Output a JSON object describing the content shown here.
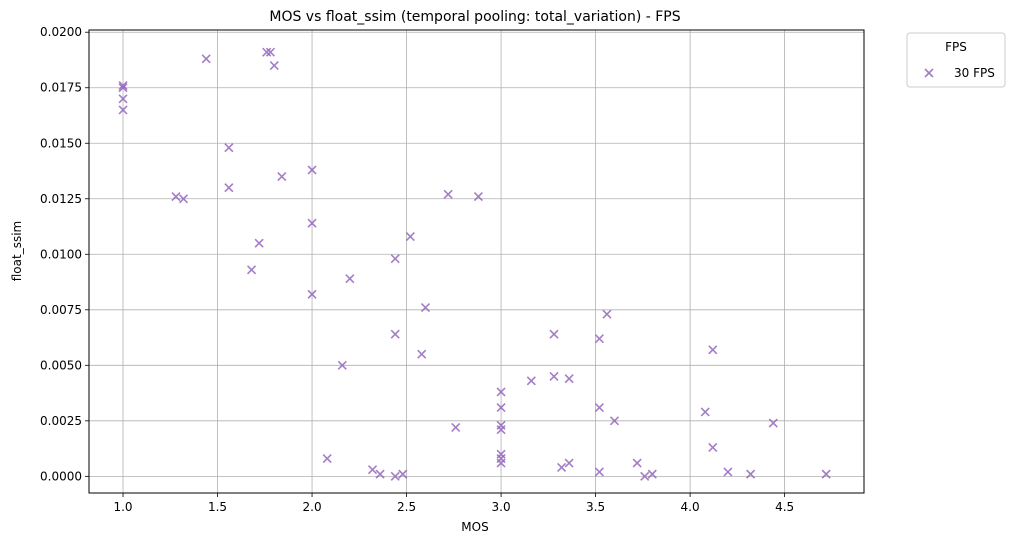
{
  "chart_data": {
    "type": "scatter",
    "title": "MOS vs float_ssim (temporal pooling: total_variation) - FPS",
    "xlabel": "MOS",
    "ylabel": "float_ssim",
    "xlim": [
      0.82,
      4.92
    ],
    "ylim": [
      -0.00075,
      0.0201
    ],
    "xticks": [
      1.0,
      1.5,
      2.0,
      2.5,
      3.0,
      3.5,
      4.0,
      4.5
    ],
    "xtick_labels": [
      "1.0",
      "1.5",
      "2.0",
      "2.5",
      "3.0",
      "3.5",
      "4.0",
      "4.5"
    ],
    "yticks": [
      0.0,
      0.0025,
      0.005,
      0.0075,
      0.01,
      0.0125,
      0.015,
      0.0175,
      0.02
    ],
    "ytick_labels": [
      "0.0000",
      "0.0025",
      "0.0050",
      "0.0075",
      "0.0100",
      "0.0125",
      "0.0150",
      "0.0175",
      "0.0200"
    ],
    "grid": true,
    "legend": {
      "title": "FPS",
      "placement": "outside-top-right"
    },
    "series": [
      {
        "name": "30 FPS",
        "color": "#9467bd",
        "marker": "x",
        "points": [
          [
            1.0,
            0.0176
          ],
          [
            1.0,
            0.0175
          ],
          [
            1.0,
            0.017
          ],
          [
            1.0,
            0.0165
          ],
          [
            1.44,
            0.0188
          ],
          [
            1.76,
            0.0191
          ],
          [
            1.78,
            0.0191
          ],
          [
            1.8,
            0.0185
          ],
          [
            1.28,
            0.0126
          ],
          [
            1.32,
            0.0125
          ],
          [
            1.56,
            0.0148
          ],
          [
            1.56,
            0.013
          ],
          [
            1.84,
            0.0135
          ],
          [
            2.0,
            0.0138
          ],
          [
            2.0,
            0.0114
          ],
          [
            1.72,
            0.0105
          ],
          [
            1.68,
            0.0093
          ],
          [
            2.0,
            0.0082
          ],
          [
            2.2,
            0.0089
          ],
          [
            2.44,
            0.0098
          ],
          [
            2.52,
            0.0108
          ],
          [
            2.72,
            0.0127
          ],
          [
            2.88,
            0.0126
          ],
          [
            2.6,
            0.0076
          ],
          [
            2.44,
            0.0064
          ],
          [
            2.58,
            0.0055
          ],
          [
            2.16,
            0.005
          ],
          [
            2.08,
            0.0008
          ],
          [
            2.32,
            0.0003
          ],
          [
            2.36,
            0.0001
          ],
          [
            2.44,
            0.0
          ],
          [
            2.48,
            0.0001
          ],
          [
            2.76,
            0.0022
          ],
          [
            3.0,
            0.0038
          ],
          [
            3.0,
            0.0031
          ],
          [
            3.0,
            0.0023
          ],
          [
            3.0,
            0.0021
          ],
          [
            3.0,
            0.001
          ],
          [
            3.0,
            0.0008
          ],
          [
            3.0,
            0.0006
          ],
          [
            3.16,
            0.0043
          ],
          [
            3.28,
            0.0064
          ],
          [
            3.28,
            0.0045
          ],
          [
            3.36,
            0.0044
          ],
          [
            3.32,
            0.0004
          ],
          [
            3.36,
            0.0006
          ],
          [
            3.52,
            0.0062
          ],
          [
            3.56,
            0.0073
          ],
          [
            3.52,
            0.0031
          ],
          [
            3.6,
            0.0025
          ],
          [
            3.52,
            0.0002
          ],
          [
            3.72,
            0.0006
          ],
          [
            3.76,
            0.0
          ],
          [
            3.8,
            0.0001
          ],
          [
            4.08,
            0.0029
          ],
          [
            4.12,
            0.0057
          ],
          [
            4.12,
            0.0013
          ],
          [
            4.2,
            0.0002
          ],
          [
            4.32,
            0.0001
          ],
          [
            4.44,
            0.0024
          ],
          [
            4.72,
            0.0001
          ]
        ]
      }
    ]
  }
}
